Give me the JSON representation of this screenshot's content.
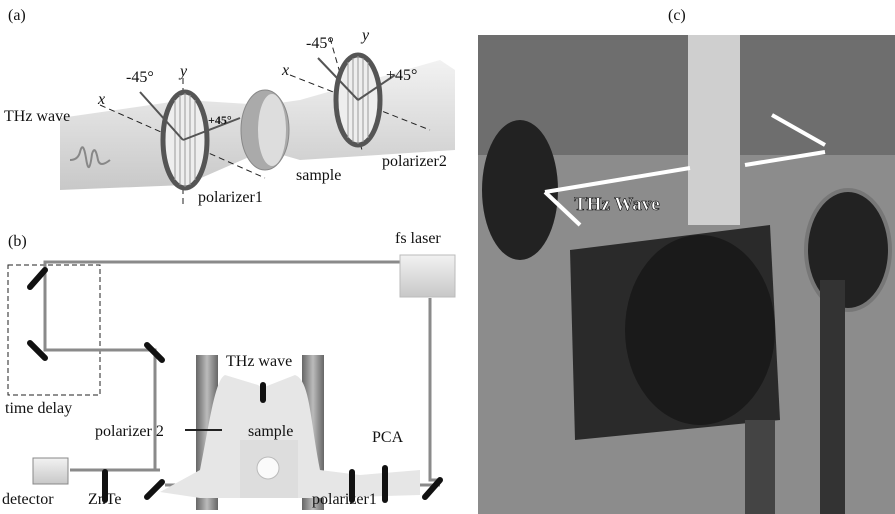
{
  "panel_a": {
    "label": "(a)",
    "thz_wave": "THz wave",
    "x1": "x",
    "y1": "y",
    "minus1": "-45°",
    "plus1": "+45°",
    "polarizer1": "polarizer1",
    "sample": "sample",
    "x2": "x",
    "y2": "y",
    "minus2": "-45°",
    "plus2": "+45°",
    "polarizer2": "polarizer2"
  },
  "panel_b": {
    "label": "(b)",
    "fs_laser": "fs  laser",
    "thz_wave": "THz  wave",
    "time_delay": "time delay",
    "polarizer2": "polarizer 2",
    "sample": "sample",
    "pca": "PCA",
    "detector": "detector",
    "znte": "ZnTe",
    "polarizer1": "polarizer1"
  },
  "panel_c": {
    "label": "(c)",
    "thz_wave": "THz Wave"
  }
}
